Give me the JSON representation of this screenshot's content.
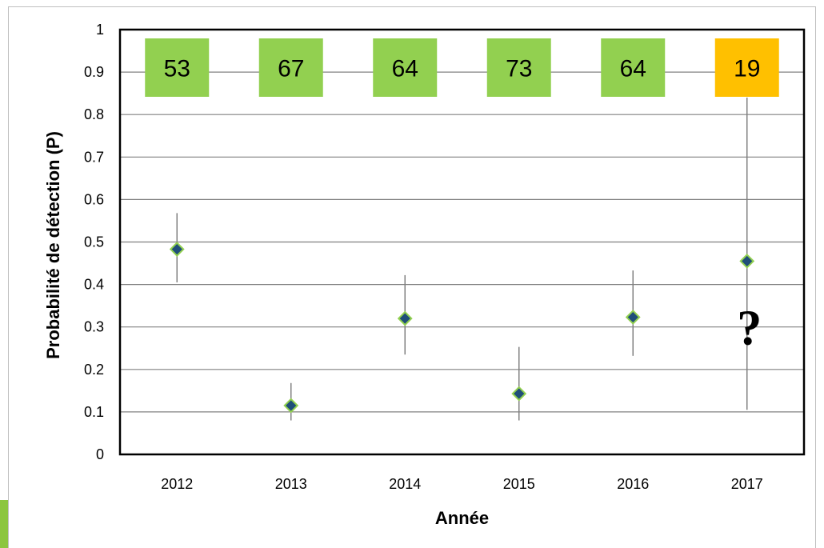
{
  "chart_data": {
    "type": "scatter",
    "xlabel": "Année",
    "ylabel": "Probabilité de détection (P)",
    "ylim": [
      0,
      1
    ],
    "yticks": [
      "0",
      "0.1",
      "0.2",
      "0.3",
      "0.4",
      "0.5",
      "0.6",
      "0.7",
      "0.8",
      "0.9",
      "1"
    ],
    "categories": [
      "2012",
      "2013",
      "2014",
      "2015",
      "2016",
      "2017"
    ],
    "series": [
      {
        "values": [
          0.483,
          0.115,
          0.32,
          0.143,
          0.323,
          0.455
        ],
        "lower": [
          0.405,
          0.08,
          0.235,
          0.08,
          0.232,
          0.105
        ],
        "upper": [
          0.568,
          0.168,
          0.422,
          0.253,
          0.433,
          0.84
        ]
      }
    ],
    "boxes": [
      {
        "label": "53",
        "color": "#92d050"
      },
      {
        "label": "67",
        "color": "#92d050"
      },
      {
        "label": "64",
        "color": "#92d050"
      },
      {
        "label": "73",
        "color": "#92d050"
      },
      {
        "label": "64",
        "color": "#92d050"
      },
      {
        "label": "19",
        "color": "#ffc000"
      }
    ],
    "annotation": "?",
    "grid": true,
    "colors": {
      "marker_fill": "#1f4e79",
      "marker_stroke": "#92d050",
      "gridline": "#808080",
      "errorbar": "#808080",
      "plot_border": "#000000"
    }
  }
}
